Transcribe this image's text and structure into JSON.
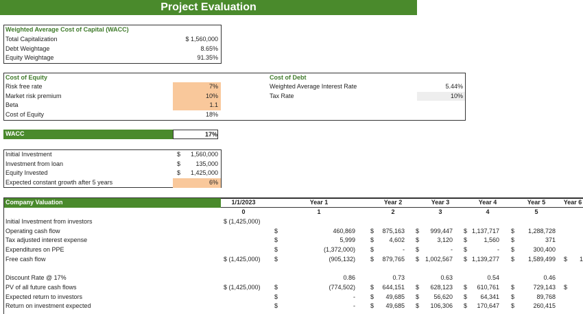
{
  "title": "Project Evaluation",
  "wacc_box": {
    "heading": "Weighted Average Cost of Capital (WACC)",
    "rows": [
      {
        "label": "Total Capitalization",
        "value": "$  1,560,000"
      },
      {
        "label": "Debt Weightage",
        "value": "8.65%"
      },
      {
        "label": "Equity Weightage",
        "value": "91.35%"
      }
    ]
  },
  "cost_of_equity": {
    "heading": "Cost of Equity",
    "rows": [
      {
        "label": "Risk free rate",
        "value": "7%",
        "input": true
      },
      {
        "label": "Market risk premium",
        "value": "10%",
        "input": true
      },
      {
        "label": "Beta",
        "value": "1.1",
        "input": true
      },
      {
        "label": "Cost of Equity",
        "value": "18%",
        "input": false
      }
    ]
  },
  "cost_of_debt": {
    "heading": "Cost of Debt",
    "rows": [
      {
        "label": "Weighted Average Interest Rate",
        "value": "5.44%"
      },
      {
        "label": "Tax Rate",
        "value": "10%"
      }
    ]
  },
  "wacc": {
    "label": "WACC",
    "value": "17%"
  },
  "investment": {
    "rows": [
      {
        "label": "Initial Investment",
        "dollar": "$",
        "value": "1,560,000"
      },
      {
        "label": "Investment from loan",
        "dollar": "$",
        "value": "135,000"
      },
      {
        "label": "Equity Invested",
        "dollar": "$",
        "value": "1,425,000"
      },
      {
        "label": "Expected constant growth after 5 years",
        "dollar": "",
        "value": "6%",
        "input": true
      }
    ]
  },
  "valuation": {
    "heading": "Company Valuation",
    "periods": [
      "1/1/2023",
      "Year 1",
      "Year 2",
      "Year 3",
      "Year 4",
      "Year 5",
      "Year 6"
    ],
    "indices": [
      "0",
      "1",
      "2",
      "3",
      "4",
      "5",
      ""
    ],
    "rows": [
      {
        "label": "Initial Investment from investors",
        "c0": "$ (1,425,000)",
        "cells": [
          [
            "",
            ""
          ],
          [
            "",
            ""
          ],
          [
            "",
            ""
          ],
          [
            "",
            ""
          ],
          [
            "",
            ""
          ],
          [
            "",
            ""
          ]
        ]
      },
      {
        "label": "Operating cash flow",
        "c0": "",
        "cells": [
          [
            "$",
            "460,869"
          ],
          [
            "$",
            "875,163"
          ],
          [
            "$",
            "999,447"
          ],
          [
            "$",
            "1,137,717"
          ],
          [
            "$",
            "1,288,728"
          ],
          [
            "",
            ""
          ]
        ]
      },
      {
        "label": "Tax adjusted interest expense",
        "c0": "",
        "cells": [
          [
            "$",
            "5,999"
          ],
          [
            "$",
            "4,602"
          ],
          [
            "$",
            "3,120"
          ],
          [
            "$",
            "1,560"
          ],
          [
            "$",
            "371"
          ],
          [
            "",
            ""
          ]
        ]
      },
      {
        "label": "Expenditures on PPE",
        "c0": "",
        "cells": [
          [
            "$",
            "(1,372,000)"
          ],
          [
            "$",
            "-"
          ],
          [
            "$",
            "-"
          ],
          [
            "$",
            "-"
          ],
          [
            "$",
            "300,400"
          ],
          [
            "",
            ""
          ]
        ]
      },
      {
        "label": "Free cash flow",
        "c0": "$ (1,425,000)",
        "cells": [
          [
            "$",
            "(905,132)"
          ],
          [
            "$",
            "879,765"
          ],
          [
            "$",
            "1,002,567"
          ],
          [
            "$",
            "1,139,277"
          ],
          [
            "$",
            "1,589,499"
          ],
          [
            "$",
            "1"
          ]
        ]
      },
      {
        "label": "",
        "c0": "",
        "cells": []
      },
      {
        "label": "Discount Rate @ 17%",
        "c0": "",
        "cells": [
          [
            "",
            "0.86"
          ],
          [
            "",
            "0.73"
          ],
          [
            "",
            "0.63"
          ],
          [
            "",
            "0.54"
          ],
          [
            "",
            "0.46"
          ],
          [
            "",
            ""
          ]
        ]
      },
      {
        "label": "PV of all future cash flows",
        "c0": "$ (1,425,000)",
        "cells": [
          [
            "$",
            "(774,502)"
          ],
          [
            "$",
            "644,151"
          ],
          [
            "$",
            "628,123"
          ],
          [
            "$",
            "610,761"
          ],
          [
            "$",
            "729,143"
          ],
          [
            "$",
            ""
          ]
        ]
      },
      {
        "label": "Expected return to investors",
        "c0": "",
        "cells": [
          [
            "$",
            "-"
          ],
          [
            "$",
            "49,685"
          ],
          [
            "$",
            "56,620"
          ],
          [
            "$",
            "64,341"
          ],
          [
            "$",
            "89,768"
          ],
          [
            "",
            ""
          ]
        ]
      },
      {
        "label": "Return on investment expected",
        "c0": "",
        "cells": [
          [
            "$",
            "-"
          ],
          [
            "$",
            "49,685"
          ],
          [
            "$",
            "106,306"
          ],
          [
            "$",
            "170,647"
          ],
          [
            "$",
            "260,415"
          ],
          [
            "",
            ""
          ]
        ]
      }
    ]
  },
  "colors": {
    "green": "#4a8a2c",
    "input": "#f9c89b"
  }
}
